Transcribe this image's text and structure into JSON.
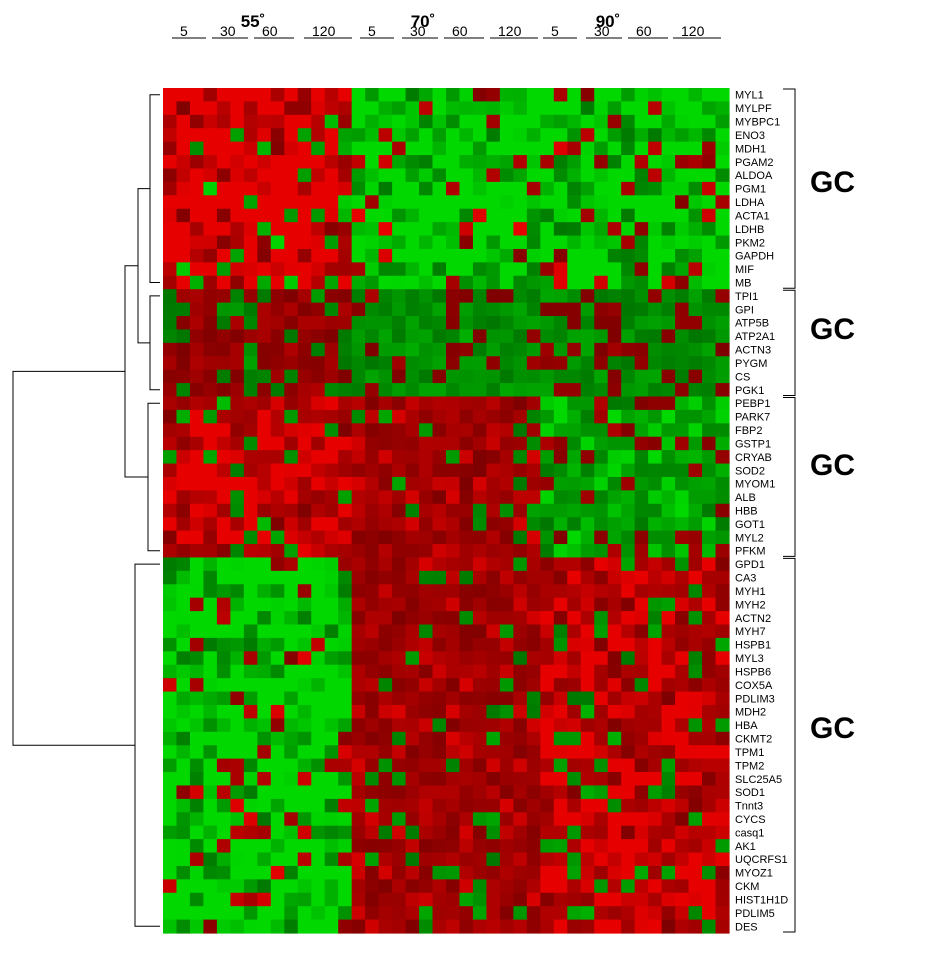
{
  "chart_data": {
    "type": "heatmap",
    "temperatures": [
      "55˚",
      "70˚",
      "90˚"
    ],
    "timepoints": [
      "5",
      "30",
      "60",
      "120"
    ],
    "genes": [
      "MYL1",
      "MYLPF",
      "MYBPC1",
      "ENO3",
      "MDH1",
      "PGAM2",
      "ALDOA",
      "PGM1",
      "LDHA",
      "ACTA1",
      "LDHB",
      "PKM2",
      "GAPDH",
      "MIF",
      "MB",
      "TPI1",
      "GPI",
      "ATP5B",
      "ATP2A1",
      "ACTN3",
      "PYGM",
      "CS",
      "PGK1",
      "PEBP1",
      "PARK7",
      "FBP2",
      "GSTP1",
      "CRYAB",
      "SOD2",
      "MYOM1",
      "ALB",
      "HBB",
      "GOT1",
      "MYL2",
      "PFKM",
      "GPD1",
      "CA3",
      "MYH1",
      "MYH2",
      "ACTN2",
      "MYH7",
      "HSPB1",
      "MYL3",
      "HSPB6",
      "COX5A",
      "PDLIM3",
      "MDH2",
      "HBA",
      "CKMT2",
      "TPM1",
      "TPM2",
      "SLC25A5",
      "SOD1",
      "Tnnt3",
      "CYCS",
      "casq1",
      "AK1",
      "UQCRFS1",
      "MYOZ1",
      "CKM",
      "HIST1H1D",
      "PDLIM5",
      "DES"
    ],
    "clusters": [
      {
        "label": "GC",
        "first_gene": "MYL1",
        "last_gene": "MB"
      },
      {
        "label": "GC",
        "first_gene": "TPI1",
        "last_gene": "PGK1"
      },
      {
        "label": "GC",
        "first_gene": "PEBP1",
        "last_gene": "PFKM"
      },
      {
        "label": "GC",
        "first_gene": "GPD1",
        "last_gene": "DES"
      }
    ],
    "color_scale": {
      "high": "#e60000",
      "low": "#00d800",
      "mid": "#000000"
    },
    "sample_columns": 42,
    "approx_profiles": {
      "cluster1": {
        "55˚": 1.0,
        "70˚": -1.0,
        "90˚": -1.0
      },
      "cluster2": {
        "55˚": 0.3,
        "70˚": -0.4,
        "90˚": -0.2
      },
      "cluster3": {
        "55˚": 0.8,
        "70˚": 0.5,
        "90˚": -0.6
      },
      "cluster4": {
        "55˚": -1.0,
        "70˚": 0.5,
        "90˚": 0.8
      }
    }
  }
}
